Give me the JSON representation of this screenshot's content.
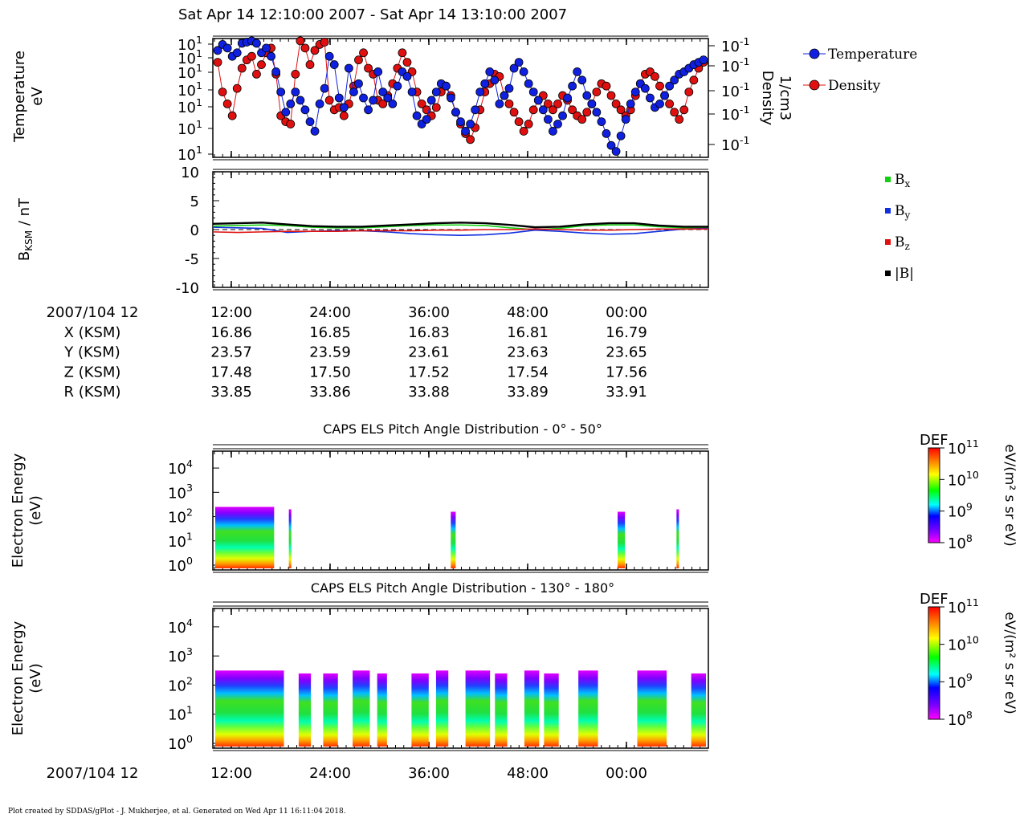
{
  "title": "Sat Apr 14 12:10:00 2007 - Sat Apr 14 13:10:00 2007",
  "footer": "Plot created by SDDAS/gPlot - J. Mukherjee, et al.  Generated on Wed Apr 11 16:11:04 2018.",
  "colors": {
    "temperature": "#1020e0",
    "density": "#e01010",
    "bx": "#10d010",
    "by": "#1030e0",
    "bz": "#e01010",
    "bmag": "#000000"
  },
  "chart_data": [
    {
      "type": "scatter",
      "id": "plasma-moments",
      "ylabel": [
        "Temperature",
        "eV"
      ],
      "ylabel_right": [
        "Density",
        "1/cm3"
      ],
      "y_tick_labels_left": [
        "10",
        "10",
        "10",
        "10",
        "10",
        "10",
        "10"
      ],
      "y_tick_exponents_left": [
        "1",
        "1",
        "1",
        "1",
        "1",
        "1",
        "1"
      ],
      "y_tick_labels_right": [
        "10",
        "10",
        "10",
        "10",
        "10"
      ],
      "y_tick_exponents_right": [
        "-1",
        "-1",
        "-1",
        "-1",
        "-1"
      ],
      "legend": [
        "Temperature",
        "Density"
      ],
      "legend_position": "right",
      "x_range": [
        6,
        108
      ],
      "series": [
        {
          "name": "Temperature",
          "x": [
            7,
            8,
            9,
            10,
            11,
            12,
            13,
            14,
            15,
            16,
            17,
            18,
            19,
            20,
            21,
            22,
            23,
            24,
            25,
            26,
            27,
            28,
            29,
            30,
            31,
            32,
            33,
            34,
            35,
            36,
            37,
            38,
            39,
            40,
            41,
            42,
            43,
            44,
            45,
            46,
            47,
            48,
            49,
            50,
            51,
            52,
            53,
            54,
            55,
            56,
            57,
            58,
            59,
            60,
            61,
            62,
            63,
            64,
            65,
            66,
            67,
            68,
            69,
            70,
            71,
            72,
            73,
            74,
            75,
            76,
            77,
            78,
            79,
            80,
            81,
            82,
            83,
            84,
            85,
            86,
            87,
            88,
            89,
            90,
            91,
            92,
            93,
            94,
            95,
            96,
            97,
            98,
            99,
            100,
            101,
            102,
            103,
            104,
            105,
            106,
            107
          ],
          "y": [
            0.9,
            0.95,
            0.92,
            0.85,
            0.88,
            0.96,
            0.97,
            0.98,
            0.96,
            0.88,
            0.92,
            0.85,
            0.72,
            0.55,
            0.38,
            0.45,
            0.55,
            0.48,
            0.4,
            0.3,
            0.22,
            0.45,
            0.58,
            0.85,
            0.78,
            0.5,
            0.42,
            0.75,
            0.55,
            0.62,
            0.5,
            0.4,
            0.48,
            0.72,
            0.55,
            0.5,
            0.45,
            0.6,
            0.72,
            0.68,
            0.55,
            0.35,
            0.28,
            0.32,
            0.48,
            0.55,
            0.62,
            0.6,
            0.5,
            0.38,
            0.3,
            0.22,
            0.28,
            0.4,
            0.55,
            0.62,
            0.72,
            0.65,
            0.45,
            0.52,
            0.58,
            0.75,
            0.8,
            0.72,
            0.62,
            0.55,
            0.48,
            0.4,
            0.32,
            0.22,
            0.28,
            0.35,
            0.5,
            0.6,
            0.72,
            0.65,
            0.52,
            0.45,
            0.38,
            0.3,
            0.2,
            0.1,
            0.05,
            0.18,
            0.32,
            0.45,
            0.55,
            0.62,
            0.58,
            0.5,
            0.42,
            0.45,
            0.52,
            0.6,
            0.65,
            0.7,
            0.72,
            0.75,
            0.78,
            0.8,
            0.82
          ]
        },
        {
          "name": "Density",
          "x": [
            7,
            8,
            9,
            10,
            11,
            12,
            13,
            14,
            15,
            16,
            17,
            18,
            19,
            20,
            21,
            22,
            23,
            24,
            25,
            26,
            27,
            28,
            29,
            30,
            31,
            32,
            33,
            34,
            35,
            36,
            37,
            38,
            39,
            40,
            41,
            42,
            43,
            44,
            45,
            46,
            47,
            48,
            49,
            50,
            51,
            52,
            53,
            54,
            55,
            56,
            57,
            58,
            59,
            60,
            61,
            62,
            63,
            64,
            65,
            66,
            67,
            68,
            69,
            70,
            71,
            72,
            73,
            74,
            75,
            76,
            77,
            78,
            79,
            80,
            81,
            82,
            83,
            84,
            85,
            86,
            87,
            88,
            89,
            90,
            91,
            92,
            93,
            94,
            95,
            96,
            97,
            98,
            99,
            100,
            101,
            102,
            103,
            104,
            105,
            106,
            107
          ],
          "y": [
            0.8,
            0.55,
            0.45,
            0.35,
            0.58,
            0.75,
            0.82,
            0.85,
            0.7,
            0.78,
            0.88,
            0.92,
            0.7,
            0.35,
            0.3,
            0.28,
            0.7,
            0.98,
            0.92,
            0.78,
            0.9,
            0.95,
            0.97,
            0.48,
            0.4,
            0.42,
            0.35,
            0.45,
            0.6,
            0.82,
            0.88,
            0.75,
            0.7,
            0.48,
            0.45,
            0.52,
            0.62,
            0.75,
            0.88,
            0.8,
            0.72,
            0.55,
            0.45,
            0.4,
            0.35,
            0.42,
            0.55,
            0.6,
            0.52,
            0.38,
            0.28,
            0.2,
            0.15,
            0.25,
            0.4,
            0.55,
            0.62,
            0.7,
            0.68,
            0.52,
            0.45,
            0.38,
            0.3,
            0.22,
            0.28,
            0.4,
            0.48,
            0.52,
            0.45,
            0.4,
            0.45,
            0.52,
            0.48,
            0.4,
            0.35,
            0.32,
            0.38,
            0.45,
            0.55,
            0.62,
            0.6,
            0.52,
            0.45,
            0.4,
            0.35,
            0.4,
            0.52,
            0.62,
            0.7,
            0.72,
            0.68,
            0.6,
            0.52,
            0.45,
            0.38,
            0.32,
            0.4,
            0.55,
            0.65,
            0.75,
            0.8
          ]
        }
      ]
    },
    {
      "type": "line",
      "id": "magnetic-field",
      "ylabel": "B",
      "ylabel_sub": "KSM",
      "ylabel_unit": " / nT",
      "ylim": [
        -10,
        10
      ],
      "y_ticks": [
        -10,
        -5,
        0,
        5,
        10
      ],
      "y_tick_labels": [
        "-10",
        "-5",
        "0",
        "5",
        "10"
      ],
      "legend": [
        {
          "name": "B",
          "sub": "x"
        },
        {
          "name": "B",
          "sub": "y"
        },
        {
          "name": "B",
          "sub": "z"
        },
        {
          "name": "|B|",
          "sub": ""
        }
      ],
      "legend_position": "right",
      "x_range": [
        0,
        100
      ],
      "series": [
        {
          "name": "Bx",
          "x": [
            0,
            5,
            10,
            15,
            20,
            25,
            30,
            35,
            40,
            45,
            50,
            55,
            60,
            65,
            70,
            75,
            80,
            85,
            90,
            95,
            100
          ],
          "y": [
            0.6,
            0.7,
            0.8,
            0.7,
            0.4,
            0.3,
            0.3,
            0.5,
            0.7,
            0.8,
            0.8,
            0.7,
            0.3,
            0.0,
            0.2,
            0.7,
            0.8,
            0.8,
            0.5,
            0.3,
            0.3
          ]
        },
        {
          "name": "By",
          "x": [
            0,
            5,
            10,
            15,
            20,
            25,
            30,
            35,
            40,
            45,
            50,
            55,
            60,
            65,
            70,
            75,
            80,
            85,
            90,
            95,
            100
          ],
          "y": [
            0.4,
            0.3,
            0.2,
            -0.5,
            -0.3,
            -0.2,
            -0.2,
            -0.4,
            -0.7,
            -0.9,
            -1.0,
            -0.9,
            -0.6,
            -0.1,
            -0.3,
            -0.6,
            -0.8,
            -0.7,
            -0.3,
            0.1,
            0.2
          ]
        },
        {
          "name": "Bz",
          "x": [
            0,
            5,
            10,
            15,
            20,
            25,
            30,
            35,
            40,
            45,
            50,
            55,
            60,
            65,
            70,
            75,
            80,
            85,
            90,
            95,
            100
          ],
          "y": [
            -0.4,
            -0.5,
            -0.4,
            -0.3,
            -0.3,
            -0.3,
            -0.2,
            -0.2,
            -0.2,
            -0.1,
            -0.1,
            0.0,
            0.0,
            0.1,
            0.0,
            -0.1,
            -0.1,
            0.0,
            0.1,
            0.1,
            0.1
          ]
        },
        {
          "name": "|B|",
          "x": [
            0,
            5,
            10,
            15,
            20,
            25,
            30,
            35,
            40,
            45,
            50,
            55,
            60,
            65,
            70,
            75,
            80,
            85,
            90,
            95,
            100
          ],
          "y": [
            1.0,
            1.1,
            1.2,
            0.9,
            0.6,
            0.5,
            0.5,
            0.7,
            0.9,
            1.1,
            1.2,
            1.1,
            0.8,
            0.4,
            0.5,
            0.9,
            1.1,
            1.1,
            0.7,
            0.5,
            0.5
          ]
        }
      ]
    },
    {
      "type": "heatmap",
      "id": "els-pitch-0-50",
      "title": "CAPS ELS Pitch Angle Distribution - 0° - 50°",
      "ylabel": [
        "Electron Energy",
        "(eV)"
      ],
      "y_tick_labels": [
        "10",
        "10",
        "10",
        "10",
        "10"
      ],
      "y_tick_exponents": [
        "0",
        "1",
        "2",
        "3",
        "4"
      ],
      "colorbar_title": "DEF",
      "colorbar_tick_exponents": [
        "11",
        "10",
        "9",
        "8"
      ],
      "colorbar_unit": "eV/(m² s sr eV)",
      "x_range": [
        0,
        100
      ],
      "blocks": [
        [
          0,
          12,
          2.4
        ],
        [
          15,
          15.5,
          2.3
        ],
        [
          48,
          49,
          2.2
        ],
        [
          82,
          83.5,
          2.2
        ],
        [
          94,
          94.5,
          2.3
        ]
      ]
    },
    {
      "type": "heatmap",
      "id": "els-pitch-130-180",
      "title": "CAPS ELS Pitch Angle Distribution - 130° - 180°",
      "ylabel": [
        "Electron Energy",
        "(eV)"
      ],
      "y_tick_labels": [
        "10",
        "10",
        "10",
        "10",
        "10"
      ],
      "y_tick_exponents": [
        "0",
        "1",
        "2",
        "3",
        "4"
      ],
      "colorbar_title": "DEF",
      "colorbar_tick_exponents": [
        "11",
        "10",
        "9",
        "8"
      ],
      "colorbar_unit": "eV/(m² s sr eV)",
      "x_range": [
        0,
        100
      ],
      "blocks": [
        [
          0,
          14,
          2.5
        ],
        [
          17,
          19.5,
          2.4
        ],
        [
          22,
          25,
          2.4
        ],
        [
          28,
          31.5,
          2.5
        ],
        [
          33,
          35,
          2.4
        ],
        [
          40,
          43.5,
          2.4
        ],
        [
          45,
          47.5,
          2.5
        ],
        [
          51,
          56,
          2.5
        ],
        [
          57,
          59.5,
          2.4
        ],
        [
          63,
          66,
          2.5
        ],
        [
          67,
          70,
          2.4
        ],
        [
          74,
          78,
          2.5
        ],
        [
          86,
          92,
          2.5
        ],
        [
          97,
          100,
          2.4
        ]
      ]
    }
  ],
  "x_axis": {
    "tick_labels": [
      "12:00",
      "24:00",
      "36:00",
      "48:00",
      "00:00"
    ],
    "row_header": "2007/104 12"
  },
  "ephemeris": {
    "rows": [
      {
        "label": "X (KSM)",
        "values": [
          "16.86",
          "16.85",
          "16.83",
          "16.81",
          "16.79"
        ]
      },
      {
        "label": "Y (KSM)",
        "values": [
          "23.57",
          "23.59",
          "23.61",
          "23.63",
          "23.65"
        ]
      },
      {
        "label": "Z (KSM)",
        "values": [
          "17.48",
          "17.50",
          "17.52",
          "17.54",
          "17.56"
        ]
      },
      {
        "label": "R (KSM)",
        "values": [
          "33.85",
          "33.86",
          "33.88",
          "33.89",
          "33.91"
        ]
      }
    ]
  }
}
